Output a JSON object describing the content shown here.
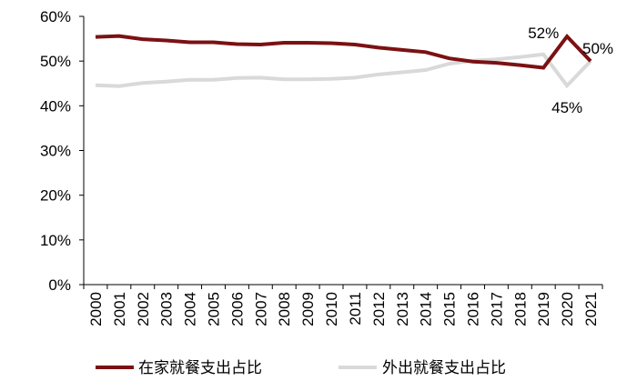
{
  "chart_data": {
    "type": "line",
    "title": "",
    "xlabel": "",
    "ylabel": "",
    "ylim": [
      0,
      0.6
    ],
    "yticks": [
      "0%",
      "10%",
      "20%",
      "30%",
      "40%",
      "50%",
      "60%"
    ],
    "grid": false,
    "legend_position": "bottom",
    "x": [
      "2000",
      "2001",
      "2002",
      "2003",
      "2004",
      "2005",
      "2006",
      "2007",
      "2008",
      "2009",
      "2010",
      "2011",
      "2012",
      "2013",
      "2014",
      "2015",
      "2016",
      "2017",
      "2018",
      "2019",
      "2020",
      "2021"
    ],
    "series": [
      {
        "name": "在家就餐支出占比",
        "color": "#7b1113",
        "values": [
          0.554,
          0.556,
          0.549,
          0.546,
          0.542,
          0.542,
          0.538,
          0.537,
          0.541,
          0.541,
          0.54,
          0.537,
          0.53,
          0.525,
          0.52,
          0.506,
          0.499,
          0.496,
          0.491,
          0.485,
          0.555,
          0.5
        ]
      },
      {
        "name": "外出就餐支出占比",
        "color": "#d9d9d9",
        "values": [
          0.446,
          0.444,
          0.451,
          0.454,
          0.458,
          0.458,
          0.462,
          0.463,
          0.459,
          0.459,
          0.46,
          0.463,
          0.47,
          0.475,
          0.48,
          0.494,
          0.501,
          0.504,
          0.509,
          0.515,
          0.445,
          0.5
        ]
      }
    ],
    "annotations": [
      {
        "text": "52%",
        "x": "2019",
        "y": 0.515
      },
      {
        "text": "45%",
        "x": "2020",
        "y": 0.445
      },
      {
        "text": "50%",
        "x": "2021",
        "y": 0.5
      }
    ]
  }
}
